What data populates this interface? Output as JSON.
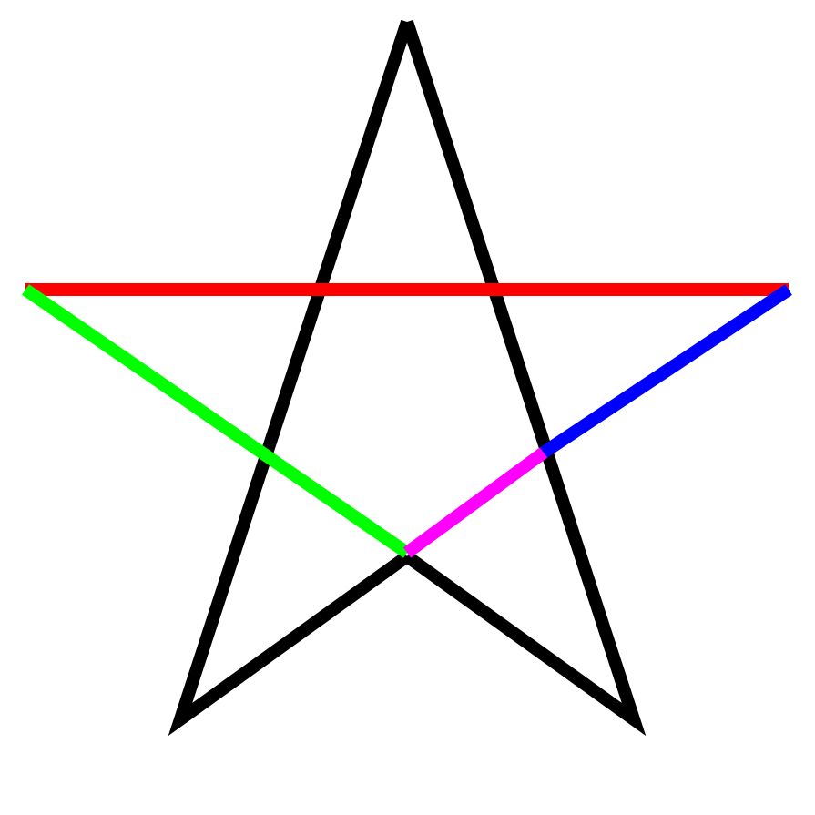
{
  "diagram": {
    "background": "#ffffff",
    "outline_color": "#000000",
    "segments": [
      {
        "name": "red-segment",
        "color": "#ff0000"
      },
      {
        "name": "green-segment",
        "color": "#00ff00"
      },
      {
        "name": "blue-segment",
        "color": "#0000ff"
      },
      {
        "name": "magenta-segment",
        "color": "#ff00ff"
      }
    ]
  }
}
